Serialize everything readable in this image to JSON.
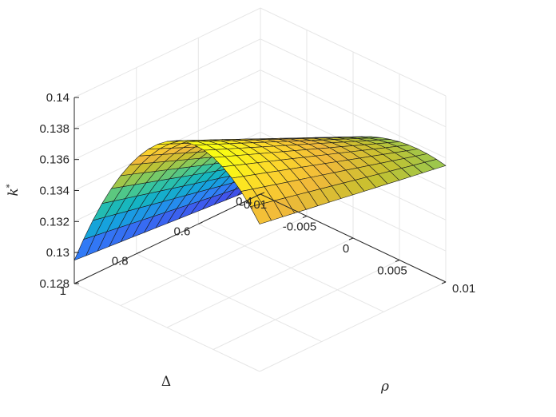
{
  "chart_data": {
    "type": "surface",
    "title": "",
    "xlabel": "ρ",
    "ylabel": "Δ",
    "zlabel": "k*",
    "xlim": [
      -0.01,
      0.01
    ],
    "ylim": [
      0.4,
      1.0
    ],
    "zlim": [
      0.128,
      0.14
    ],
    "x_ticks": [
      "-0.01",
      "-0.005",
      "0",
      "0.005",
      "0.01"
    ],
    "x_tick_values": [
      -0.01,
      -0.005,
      0,
      0.005,
      0.01
    ],
    "y_ticks": [
      "0.4",
      "0.6",
      "0.8",
      "1"
    ],
    "y_tick_values": [
      0.4,
      0.6,
      0.8,
      1.0
    ],
    "z_ticks": [
      "0.128",
      "0.13",
      "0.132",
      "0.134",
      "0.136",
      "0.138",
      "0.14"
    ],
    "z_tick_values": [
      0.128,
      0.13,
      0.132,
      0.134,
      0.136,
      0.138,
      0.14
    ],
    "grid": true,
    "colormap": "parula",
    "colormap_stops": [
      "#3e26a8",
      "#4154ec",
      "#2f7ff7",
      "#16a0df",
      "#15b6c0",
      "#3bc69a",
      "#85ca5c",
      "#c7c12f",
      "#f1b93a",
      "#fdd92a",
      "#f9fb14"
    ],
    "edge_color": "#1a1a1a",
    "surface": {
      "x_range": [
        -0.01,
        0.01
      ],
      "y_range": [
        0.4,
        1.0
      ],
      "x_points": 21,
      "y_points": 17,
      "corners": {
        "x_min_y_max": 0.1295,
        "x_min_y_min": 0.1285,
        "x_max_y_min": 0.1355,
        "x_max_y_max": 0.1375,
        "x_mid_y_max": 0.14,
        "x_mid_y_min": 0.1345
      }
    }
  }
}
